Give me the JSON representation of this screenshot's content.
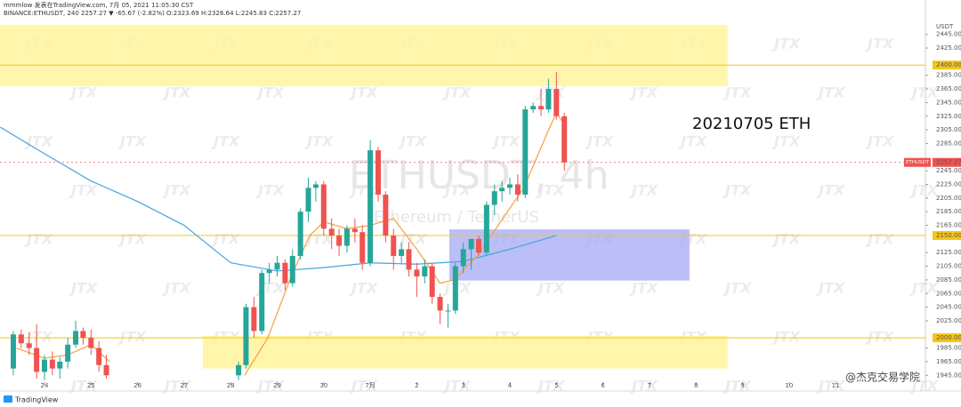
{
  "chart_data": {
    "type": "candlestick",
    "header": {
      "line1": "mmmlow 发表在TradingView.com, 7月 05, 2021 11:05:30 CST",
      "line2": "BINANCE:ETHUSDT, 240 2257.27 ▼ -65.67 (-2.82%) O:2323.69 H:2326.64 L:2245.83 C:2257.27"
    },
    "watermark_symbol": "ETHUSDT, 4h",
    "watermark_desc": "Ethereum / TetherUS",
    "annotation": "20210705 ETH",
    "brand": "TradingView",
    "corner_watermark": "@杰克交易学院",
    "tile_text": "JTX",
    "currency": "USDT",
    "xlim": [
      -0.956,
      18.929
    ],
    "ylim": [
      1935,
      2472
    ],
    "xticks": [
      {
        "value": 0,
        "label": "24"
      },
      {
        "value": 1,
        "label": "25"
      },
      {
        "value": 2,
        "label": "26"
      },
      {
        "value": 3,
        "label": "27"
      },
      {
        "value": 4,
        "label": "28"
      },
      {
        "value": 5,
        "label": "29"
      },
      {
        "value": 6,
        "label": "30"
      },
      {
        "value": 7,
        "label": "7月"
      },
      {
        "value": 8,
        "label": "2"
      },
      {
        "value": 9,
        "label": "3"
      },
      {
        "value": 10,
        "label": "4"
      },
      {
        "value": 11,
        "label": "5"
      },
      {
        "value": 12,
        "label": "6"
      },
      {
        "value": 13,
        "label": "7"
      },
      {
        "value": 14,
        "label": "8"
      },
      {
        "value": 15,
        "label": "9"
      },
      {
        "value": 16,
        "label": "10"
      },
      {
        "value": 17,
        "label": "11"
      }
    ],
    "yticks": [
      {
        "value": 1945,
        "label": "1945.00"
      },
      {
        "value": 1965,
        "label": "1965.00"
      },
      {
        "value": 1985,
        "label": "1985.00"
      },
      {
        "value": 2025,
        "label": "2025.00"
      },
      {
        "value": 2045,
        "label": "2045.00"
      },
      {
        "value": 2065,
        "label": "2065.00"
      },
      {
        "value": 2085,
        "label": "2085.00"
      },
      {
        "value": 2105,
        "label": "2105.00"
      },
      {
        "value": 2125,
        "label": "2125.00"
      },
      {
        "value": 2165,
        "label": "2165.00"
      },
      {
        "value": 2185,
        "label": "2185.00"
      },
      {
        "value": 2205,
        "label": "2205.00"
      },
      {
        "value": 2225,
        "label": "2225.00"
      },
      {
        "value": 2245,
        "label": "2245.00"
      },
      {
        "value": 2285,
        "label": "2285.00"
      },
      {
        "value": 2305,
        "label": "2305.00"
      },
      {
        "value": 2325,
        "label": "2325.00"
      },
      {
        "value": 2345,
        "label": "2345.00"
      },
      {
        "value": 2365,
        "label": "2365.00"
      },
      {
        "value": 2385,
        "label": "2385.00"
      },
      {
        "value": 2425,
        "label": "2425.00"
      },
      {
        "value": 2445,
        "label": "2445.00"
      }
    ],
    "levels": [
      {
        "value": 2400,
        "label": "2400.00"
      },
      {
        "value": 2150,
        "label": "2150.00"
      },
      {
        "value": 2000,
        "label": "2000.00"
      }
    ],
    "level_color": "#f5c518",
    "last_price": {
      "symbol": "ETHUSDT",
      "value": 2257.27,
      "color": "#ef5350"
    },
    "up_color": "#26a69a",
    "down_color": "#ef5350",
    "zones": [
      {
        "x": [
          -0.956,
          14.68
        ],
        "y": [
          2369,
          2459
        ],
        "color": "#fff59d"
      },
      {
        "x": [
          3.4,
          14.68
        ],
        "y": [
          1955,
          2003
        ],
        "color": "#fff59d"
      },
      {
        "x": [
          8.7,
          13.86
        ],
        "y": [
          2084,
          2159
        ],
        "color": "#a5a8f5"
      }
    ],
    "x": [
      -0.67,
      -0.5,
      -0.33,
      -0.17,
      0,
      0.17,
      0.33,
      0.5,
      0.67,
      0.83,
      1,
      1.17,
      1.33,
      4.17,
      4.33,
      4.5,
      4.67,
      4.83,
      5,
      5.17,
      5.33,
      5.5,
      5.67,
      5.83,
      6,
      6.17,
      6.33,
      6.5,
      6.67,
      6.83,
      7,
      7.17,
      7.33,
      7.5,
      7.67,
      7.83,
      8,
      8.17,
      8.33,
      8.5,
      8.67,
      8.83,
      9,
      9.17,
      9.33,
      9.5,
      9.67,
      9.83,
      10,
      10.17,
      10.33,
      10.5,
      10.67,
      10.83,
      11,
      11.17
    ],
    "open": [
      1955,
      2005,
      1992,
      1985,
      1950,
      1968,
      1955,
      1965,
      1990,
      2010,
      2000,
      1985,
      1960,
      1945,
      1960,
      2045,
      2010,
      2095,
      2100,
      2110,
      2080,
      2120,
      2185,
      2220,
      2225,
      2160,
      2150,
      2135,
      2160,
      2155,
      2110,
      2275,
      2210,
      2150,
      2120,
      2130,
      2100,
      2090,
      2105,
      2060,
      2040,
      2040,
      2105,
      2130,
      2145,
      2125,
      2195,
      2215,
      2220,
      2225,
      2210,
      2335,
      2340,
      2335,
      2365,
      2325
    ],
    "high": [
      2010,
      2012,
      2008,
      2020,
      1975,
      1980,
      1972,
      2000,
      2025,
      2015,
      2012,
      1995,
      1975,
      1965,
      2050,
      2060,
      2100,
      2110,
      2120,
      2115,
      2130,
      2190,
      2235,
      2230,
      2230,
      2175,
      2160,
      2165,
      2175,
      2165,
      2290,
      2280,
      2215,
      2160,
      2140,
      2140,
      2110,
      2115,
      2110,
      2065,
      2050,
      2110,
      2140,
      2145,
      2150,
      2200,
      2225,
      2230,
      2235,
      2240,
      2340,
      2345,
      2365,
      2380,
      2390,
      2330
    ],
    "low": [
      1945,
      1985,
      1975,
      1940,
      1938,
      1945,
      1940,
      1955,
      1985,
      1990,
      1975,
      1950,
      1940,
      1938,
      1955,
      2000,
      2005,
      2080,
      2090,
      2070,
      2075,
      2115,
      2170,
      2200,
      2150,
      2130,
      2120,
      2125,
      2140,
      2100,
      2105,
      2200,
      2140,
      2100,
      2110,
      2090,
      2060,
      2080,
      2050,
      2020,
      2015,
      2035,
      2095,
      2100,
      2120,
      2120,
      2180,
      2200,
      2210,
      2200,
      2205,
      2330,
      2325,
      2330,
      2320,
      2245
    ],
    "close": [
      2005,
      1992,
      1985,
      1950,
      1968,
      1955,
      1965,
      1990,
      2010,
      2000,
      1985,
      1960,
      1945,
      1960,
      2045,
      2010,
      2095,
      2100,
      2110,
      2080,
      2120,
      2185,
      2220,
      2225,
      2160,
      2150,
      2135,
      2160,
      2155,
      2110,
      2275,
      2210,
      2150,
      2120,
      2130,
      2100,
      2090,
      2105,
      2060,
      2040,
      2040,
      2105,
      2130,
      2145,
      2125,
      2195,
      2215,
      2220,
      2225,
      2210,
      2335,
      2340,
      2335,
      2365,
      2325,
      2257.27
    ],
    "lines": [
      {
        "color": "#4aa3df",
        "x": [
          -0.95,
          0,
          1,
          2,
          3,
          4,
          5,
          6,
          7,
          8,
          9,
          10,
          11
        ],
        "values": [
          2309,
          2270,
          2230,
          2200,
          2165,
          2110,
          2098,
          2103,
          2110,
          2108,
          2112,
          2130,
          2150
        ]
      },
      {
        "color": "#f5a13c",
        "x": [
          -0.6,
          0,
          0.5,
          1,
          1.4,
          null,
          4.3,
          4.8,
          5.3,
          5.7,
          6,
          6.5,
          7,
          7.5,
          8,
          8.5,
          8.8,
          9.3,
          9.8,
          10.3,
          10.8,
          11,
          11.2
        ],
        "values": [
          1985,
          1970,
          1975,
          1990,
          1965,
          null,
          1945,
          2000,
          2090,
          2150,
          2170,
          2160,
          2165,
          2175,
          2130,
          2080,
          2085,
          2120,
          2170,
          2220,
          2300,
          2330,
          2310
        ]
      }
    ]
  }
}
